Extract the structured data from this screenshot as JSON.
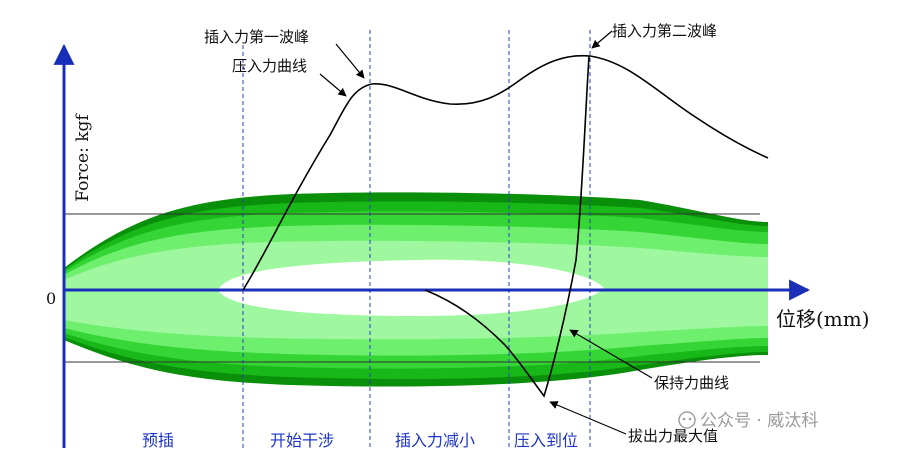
{
  "axes": {
    "y_label": "Force: kgf",
    "x_label": "位移(mm)",
    "origin_label": "0"
  },
  "annotations": {
    "first_peak": "插入力第一波峰",
    "press_curve": "压入力曲线",
    "second_peak": "插入力第二波峰",
    "hold_curve": "保持力曲线",
    "max_pull": "拔出力最大值"
  },
  "phases": [
    "预插",
    "开始干涉",
    "插入力减小",
    "压入到位"
  ],
  "watermark": "公众号 · 威汰科",
  "colors": {
    "band_outer": "#0a8f0a",
    "band_mid2": "#18b818",
    "band_mid1": "#35d535",
    "band_inner": "#6ef06e",
    "band_core": "#9ff79f",
    "axis": "#1a2fb8",
    "curve": "#000000",
    "phase_text": "#1f35c8"
  }
}
